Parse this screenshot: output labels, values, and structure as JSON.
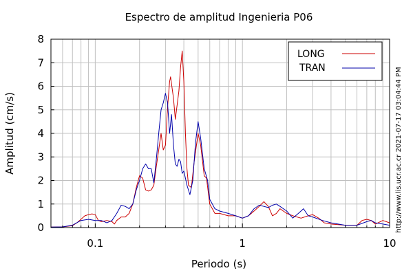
{
  "chart_data": {
    "type": "line",
    "title": "Espectro de amplitud Ingenieria P06",
    "xlabel": "Periodo (s)",
    "ylabel": "Amplitud (cm/s)",
    "x_scale": "log",
    "xlim": [
      0.05,
      10
    ],
    "ylim": [
      0,
      8
    ],
    "x_tick_labels": [
      {
        "value": 0.1,
        "label": "0.1"
      },
      {
        "value": 1,
        "label": "1"
      },
      {
        "value": 10,
        "label": "10"
      }
    ],
    "y_ticks": [
      0,
      1,
      2,
      3,
      4,
      5,
      6,
      7,
      8
    ],
    "grid": true,
    "legend_position": "top-right",
    "series": [
      {
        "name": "LONG",
        "color": "#cc0000",
        "points": [
          [
            0.05,
            0.02
          ],
          [
            0.06,
            0.03
          ],
          [
            0.07,
            0.08
          ],
          [
            0.075,
            0.2
          ],
          [
            0.08,
            0.35
          ],
          [
            0.085,
            0.5
          ],
          [
            0.09,
            0.55
          ],
          [
            0.095,
            0.58
          ],
          [
            0.1,
            0.55
          ],
          [
            0.105,
            0.3
          ],
          [
            0.11,
            0.25
          ],
          [
            0.12,
            0.3
          ],
          [
            0.13,
            0.25
          ],
          [
            0.135,
            0.15
          ],
          [
            0.14,
            0.3
          ],
          [
            0.15,
            0.45
          ],
          [
            0.16,
            0.45
          ],
          [
            0.17,
            0.6
          ],
          [
            0.18,
            1.0
          ],
          [
            0.19,
            1.7
          ],
          [
            0.2,
            2.2
          ],
          [
            0.21,
            2.1
          ],
          [
            0.22,
            1.6
          ],
          [
            0.23,
            1.55
          ],
          [
            0.24,
            1.6
          ],
          [
            0.25,
            1.8
          ],
          [
            0.26,
            2.6
          ],
          [
            0.27,
            3.3
          ],
          [
            0.28,
            4.0
          ],
          [
            0.29,
            3.3
          ],
          [
            0.3,
            3.5
          ],
          [
            0.31,
            5.1
          ],
          [
            0.32,
            6.2
          ],
          [
            0.325,
            6.4
          ],
          [
            0.33,
            6.1
          ],
          [
            0.34,
            5.5
          ],
          [
            0.35,
            4.6
          ],
          [
            0.36,
            5.2
          ],
          [
            0.37,
            5.8
          ],
          [
            0.38,
            6.8
          ],
          [
            0.39,
            7.5
          ],
          [
            0.4,
            6.2
          ],
          [
            0.41,
            4.0
          ],
          [
            0.42,
            2.5
          ],
          [
            0.43,
            1.8
          ],
          [
            0.45,
            1.7
          ],
          [
            0.47,
            2.8
          ],
          [
            0.5,
            4.0
          ],
          [
            0.52,
            3.5
          ],
          [
            0.55,
            2.2
          ],
          [
            0.57,
            2.1
          ],
          [
            0.6,
            1.0
          ],
          [
            0.65,
            0.6
          ],
          [
            0.7,
            0.6
          ],
          [
            0.8,
            0.5
          ],
          [
            0.9,
            0.5
          ],
          [
            1.0,
            0.4
          ],
          [
            1.1,
            0.5
          ],
          [
            1.2,
            0.7
          ],
          [
            1.3,
            0.9
          ],
          [
            1.4,
            1.1
          ],
          [
            1.5,
            0.9
          ],
          [
            1.6,
            0.5
          ],
          [
            1.7,
            0.6
          ],
          [
            1.8,
            0.8
          ],
          [
            2.0,
            0.6
          ],
          [
            2.2,
            0.5
          ],
          [
            2.5,
            0.4
          ],
          [
            2.8,
            0.5
          ],
          [
            3.0,
            0.55
          ],
          [
            3.3,
            0.4
          ],
          [
            3.6,
            0.2
          ],
          [
            4.0,
            0.15
          ],
          [
            5.0,
            0.1
          ],
          [
            6.0,
            0.1
          ],
          [
            6.5,
            0.3
          ],
          [
            7.0,
            0.35
          ],
          [
            7.5,
            0.3
          ],
          [
            8.0,
            0.15
          ],
          [
            9.0,
            0.3
          ],
          [
            10.0,
            0.2
          ]
        ]
      },
      {
        "name": "TRAN",
        "color": "#0000aa",
        "points": [
          [
            0.05,
            0.02
          ],
          [
            0.06,
            0.03
          ],
          [
            0.07,
            0.1
          ],
          [
            0.08,
            0.3
          ],
          [
            0.09,
            0.35
          ],
          [
            0.1,
            0.3
          ],
          [
            0.11,
            0.3
          ],
          [
            0.12,
            0.2
          ],
          [
            0.13,
            0.3
          ],
          [
            0.14,
            0.6
          ],
          [
            0.15,
            0.95
          ],
          [
            0.16,
            0.9
          ],
          [
            0.17,
            0.8
          ],
          [
            0.18,
            1.0
          ],
          [
            0.19,
            1.6
          ],
          [
            0.2,
            2.0
          ],
          [
            0.21,
            2.5
          ],
          [
            0.22,
            2.7
          ],
          [
            0.23,
            2.5
          ],
          [
            0.24,
            2.5
          ],
          [
            0.25,
            1.9
          ],
          [
            0.26,
            2.9
          ],
          [
            0.27,
            4.0
          ],
          [
            0.28,
            5.0
          ],
          [
            0.29,
            5.3
          ],
          [
            0.3,
            5.7
          ],
          [
            0.31,
            5.3
          ],
          [
            0.32,
            4.0
          ],
          [
            0.33,
            4.8
          ],
          [
            0.34,
            3.5
          ],
          [
            0.35,
            2.7
          ],
          [
            0.36,
            2.6
          ],
          [
            0.37,
            2.9
          ],
          [
            0.38,
            2.8
          ],
          [
            0.39,
            2.3
          ],
          [
            0.4,
            2.4
          ],
          [
            0.42,
            1.8
          ],
          [
            0.44,
            1.4
          ],
          [
            0.46,
            2.0
          ],
          [
            0.48,
            3.6
          ],
          [
            0.5,
            4.5
          ],
          [
            0.52,
            3.8
          ],
          [
            0.55,
            2.5
          ],
          [
            0.58,
            2.0
          ],
          [
            0.6,
            1.2
          ],
          [
            0.65,
            0.8
          ],
          [
            0.7,
            0.7
          ],
          [
            0.8,
            0.6
          ],
          [
            0.9,
            0.5
          ],
          [
            1.0,
            0.4
          ],
          [
            1.1,
            0.5
          ],
          [
            1.2,
            0.8
          ],
          [
            1.3,
            0.95
          ],
          [
            1.4,
            0.9
          ],
          [
            1.5,
            0.85
          ],
          [
            1.6,
            0.95
          ],
          [
            1.7,
            1.0
          ],
          [
            1.8,
            0.9
          ],
          [
            2.0,
            0.7
          ],
          [
            2.2,
            0.4
          ],
          [
            2.4,
            0.6
          ],
          [
            2.6,
            0.8
          ],
          [
            2.8,
            0.5
          ],
          [
            3.0,
            0.45
          ],
          [
            3.5,
            0.3
          ],
          [
            4.0,
            0.2
          ],
          [
            5.0,
            0.1
          ],
          [
            6.0,
            0.1
          ],
          [
            7.0,
            0.25
          ],
          [
            7.5,
            0.3
          ],
          [
            8.0,
            0.2
          ],
          [
            9.0,
            0.15
          ],
          [
            10.0,
            0.1
          ]
        ]
      }
    ]
  },
  "side_text": "http://www.lis.ucr.ac.cr     2021-07-17 03:04:44 PM"
}
